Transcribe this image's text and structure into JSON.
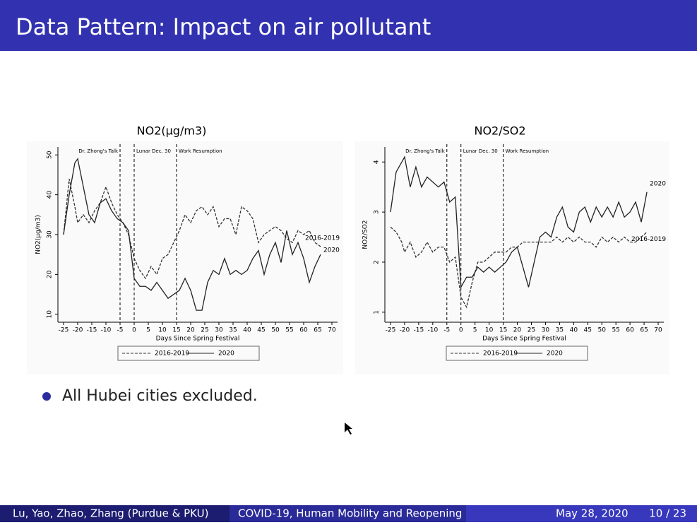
{
  "header": {
    "title": "Data Pattern: Impact on air pollutant"
  },
  "chart_data": [
    {
      "type": "line",
      "title": "NO2(μg/m3)",
      "xlabel": "Days Since Spring Festival",
      "ylabel": "NO2(μg/m3)",
      "xlim": [
        -27,
        72
      ],
      "xticks": [
        -25,
        -20,
        -15,
        -10,
        -5,
        0,
        5,
        10,
        15,
        20,
        25,
        30,
        35,
        40,
        45,
        50,
        55,
        60,
        65,
        70
      ],
      "ylim": [
        8,
        52
      ],
      "yticks": [
        10,
        20,
        30,
        40,
        50
      ],
      "vlines": [
        {
          "x": -5,
          "label": "Dr. Zhong's Talk"
        },
        {
          "x": 0,
          "label": "Lunar Dec. 30"
        },
        {
          "x": 15,
          "label": "Work Resumption"
        }
      ],
      "x": [
        -25,
        -23,
        -21,
        -20,
        -18,
        -16,
        -14,
        -12,
        -10,
        -8,
        -6,
        -4,
        -2,
        0,
        2,
        4,
        6,
        8,
        10,
        12,
        14,
        16,
        18,
        20,
        22,
        24,
        26,
        28,
        30,
        32,
        34,
        36,
        38,
        40,
        42,
        44,
        46,
        48,
        50,
        52,
        54,
        56,
        58,
        60,
        62,
        64,
        66
      ],
      "series": [
        {
          "name": "2016-2019",
          "color": "#333333",
          "style": "dashed",
          "values": [
            30,
            44,
            37,
            33,
            35,
            33,
            36,
            38,
            42,
            38,
            35,
            33,
            30,
            24,
            21,
            19,
            22,
            20,
            24,
            25,
            28,
            31,
            35,
            33,
            36,
            37,
            35,
            37,
            32,
            34,
            34,
            30,
            37,
            36,
            34,
            28,
            30,
            31,
            32,
            31,
            29,
            28,
            31,
            30,
            31,
            28,
            27
          ]
        },
        {
          "name": "2020",
          "color": "#222222",
          "style": "solid",
          "values": [
            30,
            40,
            48,
            49,
            42,
            35,
            33,
            38,
            39,
            36,
            34,
            33,
            31,
            19,
            17,
            17,
            16,
            18,
            16,
            14,
            15,
            16,
            19,
            16,
            11,
            11,
            18,
            21,
            20,
            24,
            20,
            21,
            20,
            21,
            24,
            26,
            20,
            25,
            28,
            23,
            31,
            25,
            28,
            24,
            18,
            22,
            25
          ]
        }
      ]
    },
    {
      "type": "line",
      "title": "NO2/SO2",
      "xlabel": "Days Since Spring Festival",
      "ylabel": "NO2/SO2",
      "xlim": [
        -27,
        72
      ],
      "xticks": [
        -25,
        -20,
        -15,
        -10,
        -5,
        0,
        5,
        10,
        15,
        20,
        25,
        30,
        35,
        40,
        45,
        50,
        55,
        60,
        65,
        70
      ],
      "ylim": [
        0.8,
        4.3
      ],
      "yticks": [
        1,
        2,
        3,
        4
      ],
      "vlines": [
        {
          "x": -5,
          "label": "Dr. Zhong's Talk"
        },
        {
          "x": 0,
          "label": "Lunar Dec. 30"
        },
        {
          "x": 15,
          "label": "Work Resumption"
        }
      ],
      "x": [
        -25,
        -23,
        -21,
        -20,
        -18,
        -16,
        -14,
        -12,
        -10,
        -8,
        -6,
        -4,
        -2,
        0,
        2,
        4,
        6,
        8,
        10,
        12,
        14,
        16,
        18,
        20,
        22,
        24,
        26,
        28,
        30,
        32,
        34,
        36,
        38,
        40,
        42,
        44,
        46,
        48,
        50,
        52,
        54,
        56,
        58,
        60,
        62,
        64,
        66
      ],
      "series": [
        {
          "name": "2016-2019",
          "color": "#333333",
          "style": "dashed",
          "values": [
            2.7,
            2.6,
            2.4,
            2.2,
            2.4,
            2.1,
            2.2,
            2.4,
            2.2,
            2.3,
            2.3,
            2.0,
            2.1,
            1.3,
            1.1,
            1.6,
            2.0,
            2.0,
            2.1,
            2.2,
            2.2,
            2.2,
            2.3,
            2.3,
            2.4,
            2.4,
            2.4,
            2.4,
            2.4,
            2.4,
            2.5,
            2.4,
            2.5,
            2.4,
            2.5,
            2.4,
            2.4,
            2.3,
            2.5,
            2.4,
            2.5,
            2.4,
            2.5,
            2.4,
            2.4,
            2.5,
            2.6
          ]
        },
        {
          "name": "2020",
          "color": "#222222",
          "style": "solid",
          "values": [
            3.0,
            3.8,
            4.0,
            4.1,
            3.5,
            3.9,
            3.5,
            3.7,
            3.6,
            3.5,
            3.6,
            3.2,
            3.3,
            1.5,
            1.7,
            1.7,
            1.9,
            1.8,
            1.9,
            1.8,
            1.9,
            2.0,
            2.2,
            2.3,
            1.9,
            1.5,
            2.0,
            2.5,
            2.6,
            2.5,
            2.9,
            3.1,
            2.7,
            2.6,
            3.0,
            3.1,
            2.8,
            3.1,
            2.9,
            3.1,
            2.9,
            3.2,
            2.9,
            3.0,
            3.2,
            2.8,
            3.4
          ]
        }
      ]
    }
  ],
  "bullets": [
    "All Hubei cities excluded."
  ],
  "footer": {
    "authors": "Lu, Yao, Zhao, Zhang (Purdue & PKU)",
    "talk": "COVID-19, Human Mobility and Reopening",
    "date": "May 28, 2020",
    "page": "10 / 23"
  }
}
